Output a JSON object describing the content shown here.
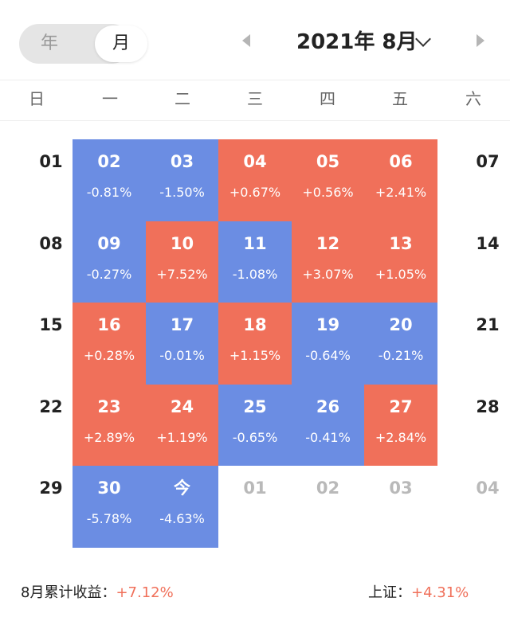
{
  "header": {
    "toggle_year": "年",
    "toggle_month": "月",
    "month_title": "2021年 8月"
  },
  "weekdays": [
    "日",
    "一",
    "二",
    "三",
    "四",
    "五",
    "六"
  ],
  "weeks": [
    [
      {
        "day": "01",
        "type": "plain"
      },
      {
        "day": "02",
        "pct": "-0.81%",
        "type": "down"
      },
      {
        "day": "03",
        "pct": "-1.50%",
        "type": "down"
      },
      {
        "day": "04",
        "pct": "+0.67%",
        "type": "up"
      },
      {
        "day": "05",
        "pct": "+0.56%",
        "type": "up"
      },
      {
        "day": "06",
        "pct": "+2.41%",
        "type": "up"
      },
      {
        "day": "07",
        "type": "plain"
      }
    ],
    [
      {
        "day": "08",
        "type": "plain"
      },
      {
        "day": "09",
        "pct": "-0.27%",
        "type": "down"
      },
      {
        "day": "10",
        "pct": "+7.52%",
        "type": "up"
      },
      {
        "day": "11",
        "pct": "-1.08%",
        "type": "down"
      },
      {
        "day": "12",
        "pct": "+3.07%",
        "type": "up"
      },
      {
        "day": "13",
        "pct": "+1.05%",
        "type": "up"
      },
      {
        "day": "14",
        "type": "plain"
      }
    ],
    [
      {
        "day": "15",
        "type": "plain"
      },
      {
        "day": "16",
        "pct": "+0.28%",
        "type": "up"
      },
      {
        "day": "17",
        "pct": "-0.01%",
        "type": "down"
      },
      {
        "day": "18",
        "pct": "+1.15%",
        "type": "up"
      },
      {
        "day": "19",
        "pct": "-0.64%",
        "type": "down"
      },
      {
        "day": "20",
        "pct": "-0.21%",
        "type": "down"
      },
      {
        "day": "21",
        "type": "plain"
      }
    ],
    [
      {
        "day": "22",
        "type": "plain"
      },
      {
        "day": "23",
        "pct": "+2.89%",
        "type": "up"
      },
      {
        "day": "24",
        "pct": "+1.19%",
        "type": "up"
      },
      {
        "day": "25",
        "pct": "-0.65%",
        "type": "down"
      },
      {
        "day": "26",
        "pct": "-0.41%",
        "type": "down"
      },
      {
        "day": "27",
        "pct": "+2.84%",
        "type": "up"
      },
      {
        "day": "28",
        "type": "plain"
      }
    ],
    [
      {
        "day": "29",
        "type": "plain"
      },
      {
        "day": "30",
        "pct": "-5.78%",
        "type": "down"
      },
      {
        "day": "今",
        "pct": "-4.63%",
        "type": "down"
      },
      {
        "day": "01",
        "type": "muted"
      },
      {
        "day": "02",
        "type": "muted"
      },
      {
        "day": "03",
        "type": "muted"
      },
      {
        "day": "04",
        "type": "muted"
      }
    ]
  ],
  "footer": {
    "month_label": "8月累计收益：",
    "month_value": "+7.12%",
    "index_label": "上证：",
    "index_value": "+4.31%"
  },
  "colors": {
    "up": "#f0705a",
    "down": "#6b8de3"
  }
}
